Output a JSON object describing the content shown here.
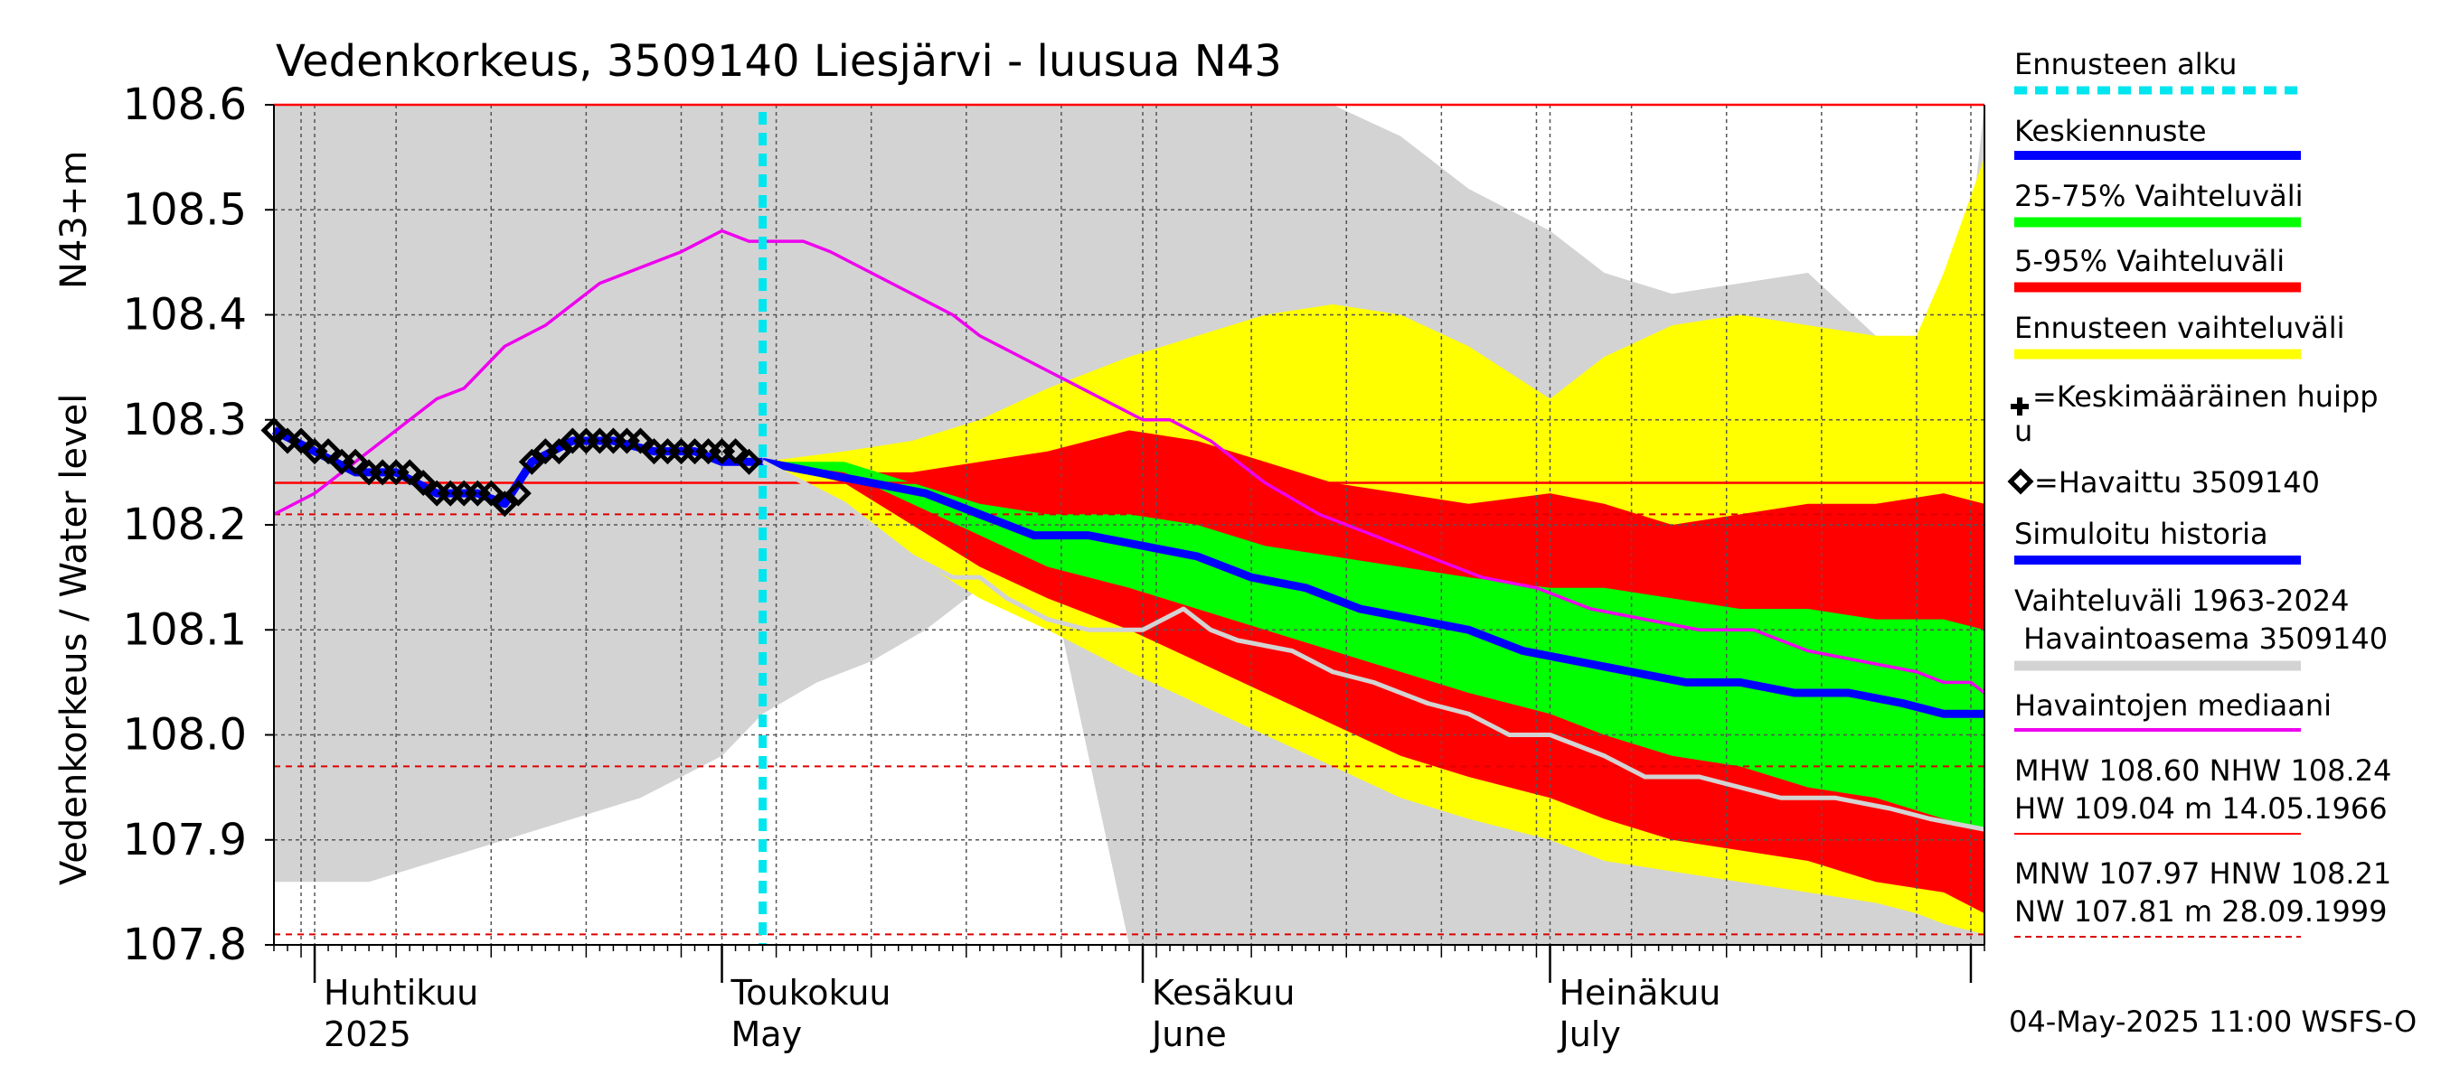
{
  "chart_data": {
    "type": "area",
    "title": "Vedenkorkeus, 3509140 Liesjärvi - luusua N43",
    "ylabel": "Vedenkorkeus / Water level",
    "ylabel_unit": "N43+m",
    "ylim": [
      107.8,
      108.6
    ],
    "yticks": [
      "107.8",
      "107.9",
      "108.0",
      "108.1",
      "108.2",
      "108.3",
      "108.4",
      "108.5",
      "108.6"
    ],
    "xlim": [
      "2025-03-29",
      "2025-08-02"
    ],
    "month_labels": [
      {
        "date": "2025-04-01",
        "fi": "Huhtikuu",
        "en": "2025"
      },
      {
        "date": "2025-05-01",
        "fi": "Toukokuu",
        "en": "May"
      },
      {
        "date": "2025-06-01",
        "fi": "Kesäkuu",
        "en": "June"
      },
      {
        "date": "2025-07-01",
        "fi": "Heinäkuu",
        "en": "July"
      }
    ],
    "forecast_start": "2025-05-04",
    "reference_lines": {
      "MHW": 108.6,
      "NHW": 108.24,
      "HW": 109.04,
      "MNW": 107.97,
      "HNW": 108.21,
      "NW": 107.81
    },
    "bands": {
      "history_range": {
        "name": "Vaihteluväli 1963-2024 Havaintoasema 3509140",
        "color": "#d3d3d3",
        "x": [
          "2025-03-29",
          "2025-04-01",
          "2025-04-05",
          "2025-04-10",
          "2025-04-15",
          "2025-04-20",
          "2025-04-25",
          "2025-04-28",
          "2025-05-01",
          "2025-05-04",
          "2025-05-08",
          "2025-05-12",
          "2025-05-16",
          "2025-05-20",
          "2025-05-25",
          "2025-05-31",
          "2025-06-05",
          "2025-06-10",
          "2025-06-15",
          "2025-06-20",
          "2025-06-25",
          "2025-07-01",
          "2025-07-05",
          "2025-07-10",
          "2025-07-15",
          "2025-07-20",
          "2025-07-25",
          "2025-07-28",
          "2025-07-30",
          "2025-08-01",
          "2025-08-02"
        ],
        "low": [
          107.86,
          107.86,
          107.86,
          107.88,
          107.9,
          107.92,
          107.94,
          107.96,
          107.98,
          108.02,
          108.05,
          108.07,
          108.1,
          108.14,
          108.16,
          107.8,
          107.8,
          107.8,
          107.8,
          107.8,
          107.8,
          107.8,
          107.8,
          107.8,
          107.8,
          107.8,
          107.8,
          107.8,
          107.8,
          107.8,
          107.8
        ],
        "high": [
          108.6,
          108.6,
          108.6,
          108.6,
          108.6,
          108.6,
          108.6,
          108.6,
          108.6,
          108.6,
          108.6,
          108.6,
          108.6,
          108.6,
          108.6,
          108.6,
          108.6,
          108.6,
          108.6,
          108.57,
          108.52,
          108.48,
          108.44,
          108.42,
          108.43,
          108.44,
          108.38,
          108.36,
          108.4,
          108.48,
          108.62
        ]
      },
      "forecast_range": {
        "name": "Ennusteen vaihteluväli",
        "color": "#ffff00",
        "x": [
          "2025-05-04",
          "2025-05-10",
          "2025-05-15",
          "2025-05-20",
          "2025-05-25",
          "2025-05-31",
          "2025-06-05",
          "2025-06-10",
          "2025-06-15",
          "2025-06-20",
          "2025-06-25",
          "2025-07-01",
          "2025-07-05",
          "2025-07-10",
          "2025-07-15",
          "2025-07-20",
          "2025-07-25",
          "2025-07-28",
          "2025-07-30",
          "2025-08-02"
        ],
        "low": [
          108.26,
          108.22,
          108.17,
          108.13,
          108.1,
          108.06,
          108.03,
          108.0,
          107.97,
          107.94,
          107.92,
          107.9,
          107.88,
          107.87,
          107.86,
          107.85,
          107.84,
          107.83,
          107.82,
          107.81
        ],
        "high": [
          108.26,
          108.27,
          108.28,
          108.3,
          108.33,
          108.36,
          108.38,
          108.4,
          108.41,
          108.4,
          108.37,
          108.32,
          108.36,
          108.39,
          108.4,
          108.39,
          108.38,
          108.38,
          108.44,
          108.55
        ]
      },
      "p5_95": {
        "name": "5-95% Vaihteluväli",
        "color": "#ff0000",
        "x": [
          "2025-05-04",
          "2025-05-10",
          "2025-05-15",
          "2025-05-20",
          "2025-05-25",
          "2025-05-31",
          "2025-06-05",
          "2025-06-10",
          "2025-06-15",
          "2025-06-20",
          "2025-06-25",
          "2025-07-01",
          "2025-07-05",
          "2025-07-10",
          "2025-07-15",
          "2025-07-20",
          "2025-07-25",
          "2025-07-30",
          "2025-08-02"
        ],
        "low": [
          108.26,
          108.24,
          108.2,
          108.16,
          108.13,
          108.1,
          108.07,
          108.04,
          108.01,
          107.98,
          107.96,
          107.94,
          107.92,
          107.9,
          107.89,
          107.88,
          107.86,
          107.85,
          107.83
        ],
        "high": [
          108.26,
          108.25,
          108.25,
          108.26,
          108.27,
          108.29,
          108.28,
          108.26,
          108.24,
          108.23,
          108.22,
          108.23,
          108.22,
          108.2,
          108.21,
          108.22,
          108.22,
          108.23,
          108.22
        ]
      },
      "p25_75": {
        "name": "25-75% Vaihteluväli",
        "color": "#00ff00",
        "x": [
          "2025-05-04",
          "2025-05-10",
          "2025-05-15",
          "2025-05-20",
          "2025-05-25",
          "2025-05-31",
          "2025-06-05",
          "2025-06-10",
          "2025-06-15",
          "2025-06-20",
          "2025-06-25",
          "2025-07-01",
          "2025-07-05",
          "2025-07-10",
          "2025-07-15",
          "2025-07-20",
          "2025-07-25",
          "2025-07-30",
          "2025-08-02"
        ],
        "low": [
          108.26,
          108.25,
          108.22,
          108.19,
          108.16,
          108.14,
          108.12,
          108.1,
          108.08,
          108.06,
          108.04,
          108.02,
          108.0,
          107.98,
          107.97,
          107.95,
          107.94,
          107.92,
          107.91
        ],
        "high": [
          108.26,
          108.26,
          108.24,
          108.22,
          108.21,
          108.21,
          108.2,
          108.18,
          108.17,
          108.16,
          108.15,
          108.14,
          108.14,
          108.13,
          108.12,
          108.12,
          108.11,
          108.11,
          108.1
        ]
      }
    },
    "series": [
      {
        "name": "Havaintojen mediaani",
        "color": "#ee00ee",
        "x": [
          "2025-03-29",
          "2025-04-01",
          "2025-04-03",
          "2025-04-05",
          "2025-04-08",
          "2025-04-10",
          "2025-04-12",
          "2025-04-15",
          "2025-04-18",
          "2025-04-20",
          "2025-04-22",
          "2025-04-24",
          "2025-04-26",
          "2025-04-28",
          "2025-05-01",
          "2025-05-03",
          "2025-05-05",
          "2025-05-07",
          "2025-05-09",
          "2025-05-12",
          "2025-05-15",
          "2025-05-18",
          "2025-05-20",
          "2025-05-23",
          "2025-05-26",
          "2025-05-29",
          "2025-06-01",
          "2025-06-03",
          "2025-06-06",
          "2025-06-10",
          "2025-06-14",
          "2025-06-18",
          "2025-06-22",
          "2025-06-26",
          "2025-06-30",
          "2025-07-04",
          "2025-07-08",
          "2025-07-12",
          "2025-07-16",
          "2025-07-20",
          "2025-07-24",
          "2025-07-28",
          "2025-07-30",
          "2025-08-01",
          "2025-08-02"
        ],
        "y": [
          108.21,
          108.23,
          108.25,
          108.27,
          108.3,
          108.32,
          108.33,
          108.37,
          108.39,
          108.41,
          108.43,
          108.44,
          108.45,
          108.46,
          108.48,
          108.47,
          108.47,
          108.47,
          108.46,
          108.44,
          108.42,
          108.4,
          108.38,
          108.36,
          108.34,
          108.32,
          108.3,
          108.3,
          108.28,
          108.24,
          108.21,
          108.19,
          108.17,
          108.15,
          108.14,
          108.12,
          108.11,
          108.1,
          108.1,
          108.08,
          108.07,
          108.06,
          108.05,
          108.05,
          108.04
        ]
      },
      {
        "name": "Keskiennuste",
        "color": "#0000ff",
        "x": [
          "2025-05-04",
          "2025-05-08",
          "2025-05-12",
          "2025-05-16",
          "2025-05-20",
          "2025-05-24",
          "2025-05-28",
          "2025-06-01",
          "2025-06-05",
          "2025-06-09",
          "2025-06-13",
          "2025-06-17",
          "2025-06-21",
          "2025-06-25",
          "2025-06-29",
          "2025-07-03",
          "2025-07-07",
          "2025-07-11",
          "2025-07-15",
          "2025-07-19",
          "2025-07-23",
          "2025-07-27",
          "2025-07-30",
          "2025-08-02"
        ],
        "y": [
          108.26,
          108.25,
          108.24,
          108.23,
          108.21,
          108.19,
          108.19,
          108.18,
          108.17,
          108.15,
          108.14,
          108.12,
          108.11,
          108.1,
          108.08,
          108.07,
          108.06,
          108.05,
          108.05,
          108.04,
          108.04,
          108.03,
          108.02,
          108.02
        ]
      },
      {
        "name": "",
        "color": "#d3d3d3",
        "x": [
          "2025-05-04",
          "2025-05-10",
          "2025-05-15",
          "2025-05-18",
          "2025-05-20",
          "2025-05-22",
          "2025-05-25",
          "2025-05-28",
          "2025-06-01",
          "2025-06-04",
          "2025-06-06",
          "2025-06-08",
          "2025-06-12",
          "2025-06-15",
          "2025-06-18",
          "2025-06-22",
          "2025-06-25",
          "2025-06-28",
          "2025-07-01",
          "2025-07-05",
          "2025-07-08",
          "2025-07-12",
          "2025-07-15",
          "2025-07-18",
          "2025-07-22",
          "2025-07-26",
          "2025-07-29",
          "2025-08-02"
        ],
        "y": [
          108.26,
          108.22,
          108.17,
          108.15,
          108.15,
          108.13,
          108.11,
          108.1,
          108.1,
          108.12,
          108.1,
          108.09,
          108.08,
          108.06,
          108.05,
          108.03,
          108.02,
          108.0,
          108.0,
          107.98,
          107.96,
          107.96,
          107.95,
          107.94,
          107.94,
          107.93,
          107.92,
          107.91
        ]
      },
      {
        "name": "Simuloitu historia",
        "color": "#0000ff",
        "x": [
          "2025-03-29",
          "2025-04-01",
          "2025-04-04",
          "2025-04-07",
          "2025-04-10",
          "2025-04-13",
          "2025-04-15",
          "2025-04-17",
          "2025-04-20",
          "2025-04-23",
          "2025-04-26",
          "2025-04-29",
          "2025-05-01",
          "2025-05-04"
        ],
        "y": [
          108.29,
          108.27,
          108.25,
          108.25,
          108.23,
          108.23,
          108.22,
          108.26,
          108.28,
          108.28,
          108.27,
          108.27,
          108.26,
          108.26
        ]
      }
    ],
    "observed": {
      "name": "Havaittu 3509140",
      "x": [
        "2025-03-29",
        "2025-03-30",
        "2025-03-31",
        "2025-04-01",
        "2025-04-02",
        "2025-04-03",
        "2025-04-04",
        "2025-04-05",
        "2025-04-06",
        "2025-04-07",
        "2025-04-08",
        "2025-04-09",
        "2025-04-10",
        "2025-04-11",
        "2025-04-12",
        "2025-04-13",
        "2025-04-14",
        "2025-04-15",
        "2025-04-16",
        "2025-04-17",
        "2025-04-18",
        "2025-04-19",
        "2025-04-20",
        "2025-04-21",
        "2025-04-22",
        "2025-04-23",
        "2025-04-24",
        "2025-04-25",
        "2025-04-26",
        "2025-04-27",
        "2025-04-28",
        "2025-04-29",
        "2025-04-30",
        "2025-05-01",
        "2025-05-02",
        "2025-05-03"
      ],
      "y": [
        108.29,
        108.28,
        108.28,
        108.27,
        108.27,
        108.26,
        108.26,
        108.25,
        108.25,
        108.25,
        108.25,
        108.24,
        108.23,
        108.23,
        108.23,
        108.23,
        108.23,
        108.22,
        108.23,
        108.26,
        108.27,
        108.27,
        108.28,
        108.28,
        108.28,
        108.28,
        108.28,
        108.28,
        108.27,
        108.27,
        108.27,
        108.27,
        108.27,
        108.27,
        108.27,
        108.26
      ]
    },
    "legend": {
      "ennusteen_alku": "Ennusteen alku",
      "keskiennuste": "Keskiennuste",
      "p25_75": "25-75% Vaihteluväli",
      "p5_95": "5-95% Vaihteluväli",
      "forecast_range": "Ennusteen vaihteluväli",
      "peak_line1": "=Keskimääräinen huipp",
      "peak_line2": "u",
      "observed": "=Havaittu 3509140",
      "simulated": "Simuloitu historia",
      "history_line1": "Vaihteluväli 1963-2024",
      "history_line2": " Havaintoasema 3509140",
      "median": "Havaintojen mediaani",
      "stats1": "MHW 108.60 NHW 108.24",
      "stats2": "HW 109.04 m 14.05.1966",
      "stats3": "MNW 107.97 HNW 108.21",
      "stats4": "NW 107.81 m 28.09.1999",
      "timestamp": "04-May-2025 11:00 WSFS-O"
    },
    "colors": {
      "forecast_start": "#00e5ee",
      "reference_solid": "#ff0000",
      "reference_dashed": "#dd0000",
      "grid": "#555555"
    }
  }
}
